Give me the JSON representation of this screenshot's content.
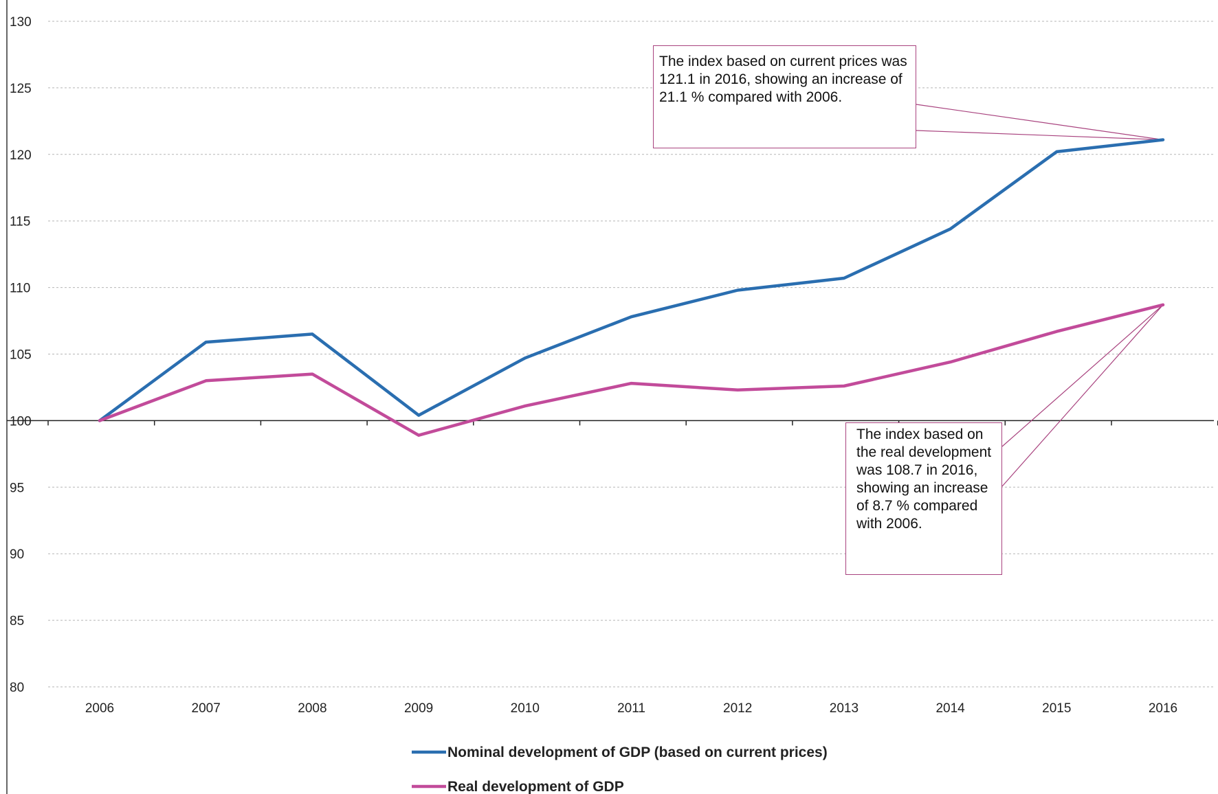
{
  "chart_data": {
    "type": "line",
    "categories": [
      "2006",
      "2007",
      "2008",
      "2009",
      "2010",
      "2011",
      "2012",
      "2013",
      "2014",
      "2015",
      "2016"
    ],
    "series": [
      {
        "name": "Nominal development of GDP (based on current prices)",
        "color": "#2a6eb0",
        "values": [
          100,
          105.9,
          106.5,
          100.4,
          104.7,
          107.8,
          109.8,
          110.7,
          114.4,
          120.2,
          121.1
        ]
      },
      {
        "name": "Real development of GDP",
        "color": "#c24b9a",
        "values": [
          100,
          103.0,
          103.5,
          98.9,
          101.1,
          102.8,
          102.3,
          102.6,
          104.4,
          106.7,
          108.7
        ]
      }
    ],
    "ylim": [
      80,
      130
    ],
    "yticks": [
      "80",
      "85",
      "90",
      "95",
      "100",
      "105",
      "110",
      "115",
      "120",
      "125",
      "130"
    ],
    "grid": true,
    "legend_position": "bottom",
    "annotations": [
      {
        "target_series": 0,
        "target_category": "2016",
        "text": "The index based on current prices was 121.1 in 2016, showing an increase of 21.1 % compared with 2006."
      },
      {
        "target_series": 1,
        "target_category": "2016",
        "text": "The index based on the real development was 108.7 in 2016, showing an increase of 8.7 % compared with 2006."
      }
    ]
  }
}
